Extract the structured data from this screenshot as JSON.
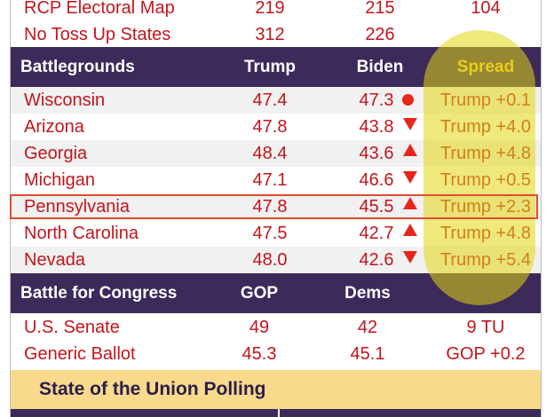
{
  "top_rows": [
    {
      "name": "RCP Electoral Map",
      "trump": "219",
      "biden": "215",
      "extra": "104"
    },
    {
      "name": "No Toss Up States",
      "trump": "312",
      "biden": "226",
      "extra": ""
    }
  ],
  "battlegrounds": {
    "header": {
      "label": "Battlegrounds",
      "col1": "Trump",
      "col2": "Biden",
      "col3": "Spread"
    },
    "rows": [
      {
        "state": "Wisconsin",
        "trump": "47.4",
        "biden": "47.3",
        "trend": "dot",
        "spread": "Trump +0.1"
      },
      {
        "state": "Arizona",
        "trump": "47.8",
        "biden": "43.8",
        "trend": "down",
        "spread": "Trump +4.0"
      },
      {
        "state": "Georgia",
        "trump": "48.4",
        "biden": "43.6",
        "trend": "up",
        "spread": "Trump +4.8"
      },
      {
        "state": "Michigan",
        "trump": "47.1",
        "biden": "46.6",
        "trend": "down",
        "spread": "Trump +0.5"
      },
      {
        "state": "Pennsylvania",
        "trump": "47.8",
        "biden": "45.5",
        "trend": "up",
        "spread": "Trump +2.3"
      },
      {
        "state": "North Carolina",
        "trump": "47.5",
        "biden": "42.7",
        "trend": "up",
        "spread": "Trump +4.8"
      },
      {
        "state": "Nevada",
        "trump": "48.0",
        "biden": "42.6",
        "trend": "down",
        "spread": "Trump +5.4"
      }
    ]
  },
  "congress": {
    "header": {
      "label": "Battle for Congress",
      "col1": "GOP",
      "col2": "Dems",
      "col3": ""
    },
    "rows": [
      {
        "name": "U.S. Senate",
        "gop": "49",
        "dems": "42",
        "spread": "9 TU"
      },
      {
        "name": "Generic Ballot",
        "gop": "45.3",
        "dems": "45.1",
        "spread": "GOP +0.2"
      }
    ]
  },
  "footer": {
    "title": "State of the Union Polling"
  },
  "colors": {
    "header_bg": "#3b2a5a",
    "text_red": "#c2151c",
    "spread_header": "#f4c230",
    "highlight": "#e2d612",
    "footer_bg": "#f9d98c",
    "trend_red": "#e8241b"
  },
  "icons": {
    "dot": "red-dot-icon",
    "up": "triangle-up-icon",
    "down": "triangle-down-icon"
  }
}
